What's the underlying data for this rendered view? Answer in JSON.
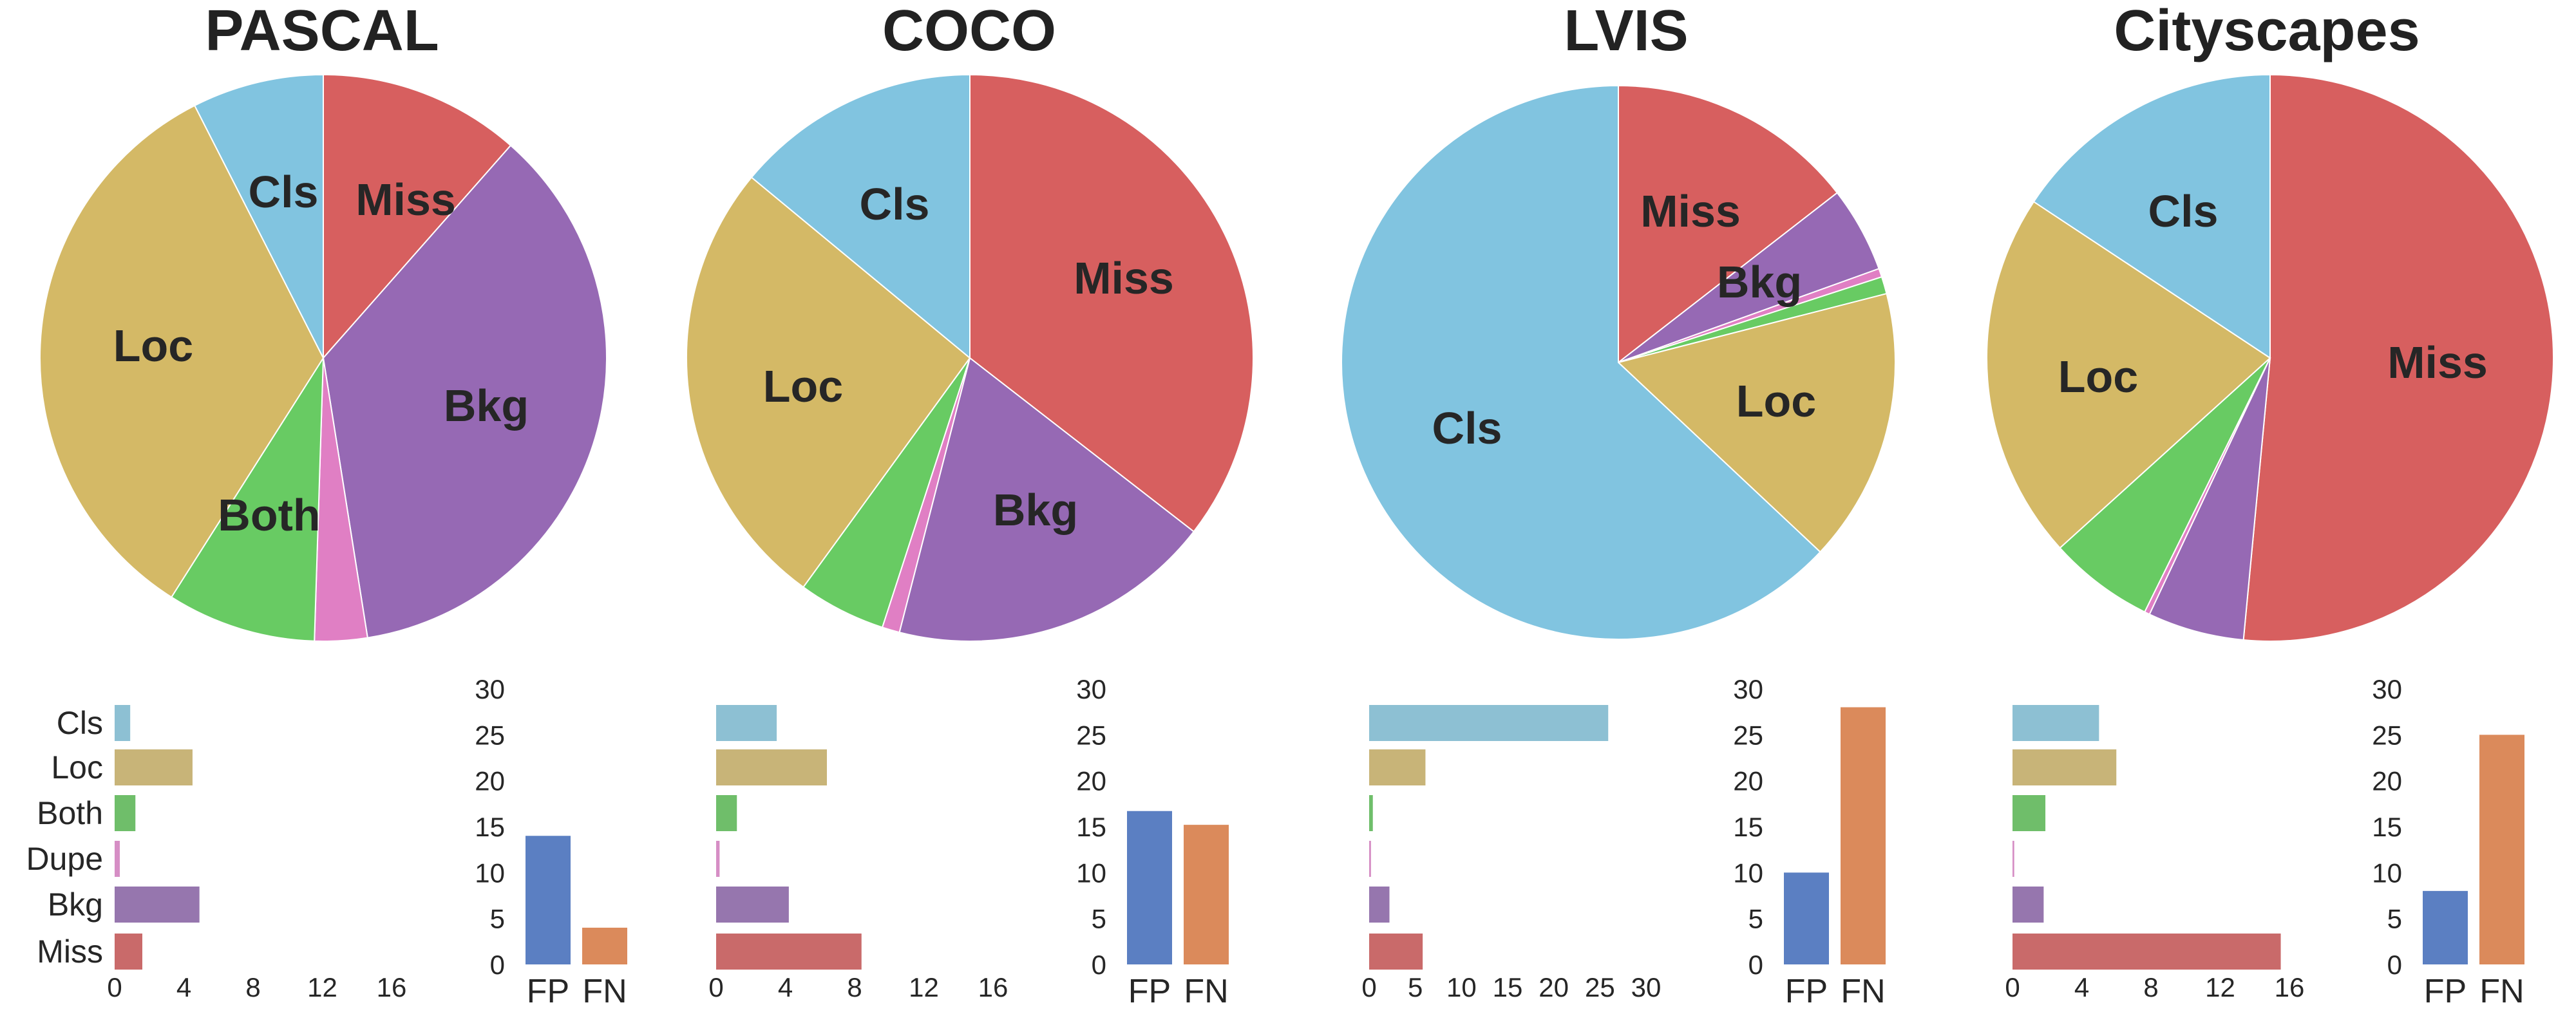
{
  "colors": {
    "Cls": "#81c4e0",
    "Loc": "#d4b966",
    "Both": "#68cb63",
    "Dupe": "#e07fc4",
    "Bkg": "#9669b4",
    "Miss": "#d75f5f",
    "Cls_bar": "#8dc0d3",
    "Loc_bar": "#c8b478",
    "Both_bar": "#6fbe6a",
    "Dupe_bar": "#d68ec5",
    "Bkg_bar": "#9676ae",
    "Miss_bar": "#c96a6a",
    "FP": "#5b7fc2",
    "FN": "#db8a5b"
  },
  "chart_data": [
    {
      "title": "PASCAL",
      "pie": {
        "type": "pie",
        "order": [
          "Miss",
          "Bkg",
          "Dupe",
          "Both",
          "Loc",
          "Cls"
        ],
        "values": [
          11.5,
          36,
          3,
          8.5,
          33.5,
          7.5
        ],
        "slice_labels": [
          "Miss",
          "Bkg",
          "",
          "Both",
          "Loc",
          "Cls"
        ]
      },
      "hbar": {
        "type": "bar",
        "orientation": "horizontal",
        "categories": [
          "Cls",
          "Loc",
          "Both",
          "Dupe",
          "Bkg",
          "Miss"
        ],
        "values": [
          0.9,
          4.5,
          1.2,
          0.3,
          4.9,
          1.6
        ],
        "category_labels_shown": true,
        "xticks": [
          "0",
          "4",
          "8",
          "12",
          "16"
        ],
        "xlim": [
          0,
          16
        ]
      },
      "vbar": {
        "type": "bar",
        "categories": [
          "FP",
          "FN"
        ],
        "values": [
          14,
          4
        ],
        "yticks": [
          "0",
          "5",
          "10",
          "15",
          "20",
          "25",
          "30"
        ],
        "ylim": [
          0,
          30
        ]
      }
    },
    {
      "title": "COCO",
      "pie": {
        "type": "pie",
        "order": [
          "Miss",
          "Bkg",
          "Dupe",
          "Both",
          "Loc",
          "Cls"
        ],
        "values": [
          35.5,
          18.5,
          1,
          5,
          26,
          14
        ],
        "slice_labels": [
          "Miss",
          "Bkg",
          "",
          "",
          "Loc",
          "Cls"
        ]
      },
      "hbar": {
        "type": "bar",
        "orientation": "horizontal",
        "categories": [
          "Cls",
          "Loc",
          "Both",
          "Dupe",
          "Bkg",
          "Miss"
        ],
        "values": [
          3.5,
          6.4,
          1.2,
          0.2,
          4.2,
          8.4
        ],
        "category_labels_shown": false,
        "xticks": [
          "0",
          "4",
          "8",
          "12",
          "16"
        ],
        "xlim": [
          0,
          16
        ]
      },
      "vbar": {
        "type": "bar",
        "categories": [
          "FP",
          "FN"
        ],
        "values": [
          16.7,
          15.2
        ],
        "yticks": [
          "0",
          "5",
          "10",
          "15",
          "20",
          "25",
          "30"
        ],
        "ylim": [
          0,
          30
        ]
      }
    },
    {
      "title": "LVIS",
      "pie": {
        "type": "pie",
        "order": [
          "Miss",
          "Bkg",
          "Dupe",
          "Both",
          "Loc",
          "Cls"
        ],
        "values": [
          14.5,
          5,
          0.5,
          1,
          16,
          63
        ],
        "slice_labels": [
          "Miss",
          "Bkg",
          "",
          "",
          "Loc",
          "Cls"
        ]
      },
      "hbar": {
        "type": "bar",
        "orientation": "horizontal",
        "categories": [
          "Cls",
          "Loc",
          "Both",
          "Dupe",
          "Bkg",
          "Miss"
        ],
        "values": [
          25.9,
          6.1,
          0.4,
          0.2,
          2.2,
          5.8
        ],
        "category_labels_shown": false,
        "xticks": [
          "0",
          "5",
          "10",
          "15",
          "20",
          "25",
          "30"
        ],
        "xlim": [
          0,
          30
        ]
      },
      "vbar": {
        "type": "bar",
        "categories": [
          "FP",
          "FN"
        ],
        "values": [
          10,
          28
        ],
        "yticks": [
          "0",
          "5",
          "10",
          "15",
          "20",
          "25",
          "30"
        ],
        "ylim": [
          0,
          30
        ]
      }
    },
    {
      "title": "Cityscapes",
      "pie": {
        "type": "pie",
        "order": [
          "Miss",
          "Bkg",
          "Dupe",
          "Both",
          "Loc",
          "Cls"
        ],
        "values": [
          51.5,
          5.5,
          0.3,
          6,
          21,
          15.7
        ],
        "slice_labels": [
          "Miss",
          "",
          "",
          "",
          "Loc",
          "Cls"
        ]
      },
      "hbar": {
        "type": "bar",
        "orientation": "horizontal",
        "categories": [
          "Cls",
          "Loc",
          "Both",
          "Dupe",
          "Bkg",
          "Miss"
        ],
        "values": [
          5,
          6,
          1.9,
          0.1,
          1.8,
          15.5
        ],
        "category_labels_shown": false,
        "xticks": [
          "0",
          "4",
          "8",
          "12",
          "16"
        ],
        "xlim": [
          0,
          16
        ]
      },
      "vbar": {
        "type": "bar",
        "categories": [
          "FP",
          "FN"
        ],
        "values": [
          8,
          25
        ],
        "yticks": [
          "0",
          "5",
          "10",
          "15",
          "20",
          "25",
          "30"
        ],
        "ylim": [
          0,
          30
        ]
      }
    }
  ]
}
